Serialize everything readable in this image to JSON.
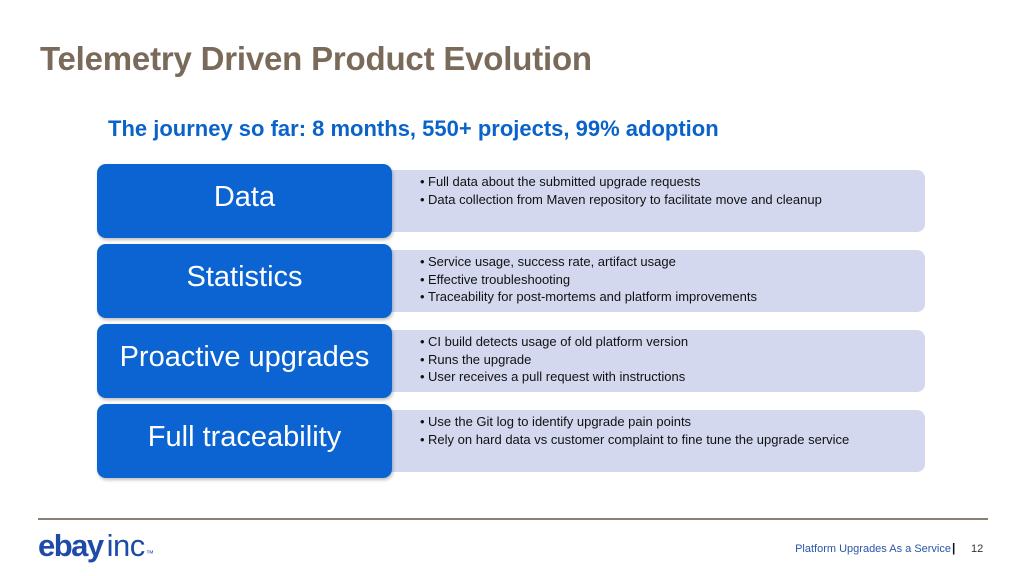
{
  "slide": {
    "title": "Telemetry Driven Product Evolution",
    "subtitle": "The journey so far: 8 months, 550+ projects, 99% adoption",
    "rows": [
      {
        "label": "Data",
        "bullets": [
          "Full data about the submitted upgrade requests",
          "Data collection from Maven repository to facilitate move and cleanup"
        ]
      },
      {
        "label": "Statistics",
        "bullets": [
          "Service usage, success rate, artifact usage",
          "Effective troubleshooting",
          "Traceability for post-mortems and platform improvements"
        ]
      },
      {
        "label": "Proactive upgrades",
        "bullets": [
          "CI build detects usage of old platform version",
          "Runs the upgrade",
          "User receives a pull request with instructions"
        ]
      },
      {
        "label": "Full traceability",
        "bullets": [
          "Use the Git log to identify upgrade pain points",
          "Rely on hard data vs customer complaint to fine tune the upgrade service"
        ]
      }
    ]
  },
  "footer": {
    "logo_ebay": "ebay",
    "logo_inc": "inc",
    "logo_tm": "™",
    "text": "Platform Upgrades As a Service",
    "separator": "|",
    "page_number": "12"
  },
  "colors": {
    "title": "#7a6a5a",
    "subtitle": "#0a63c9",
    "label_fill": "#0b64d1",
    "detail_fill": "#d4d8ef",
    "logo": "#1e4aa8"
  }
}
